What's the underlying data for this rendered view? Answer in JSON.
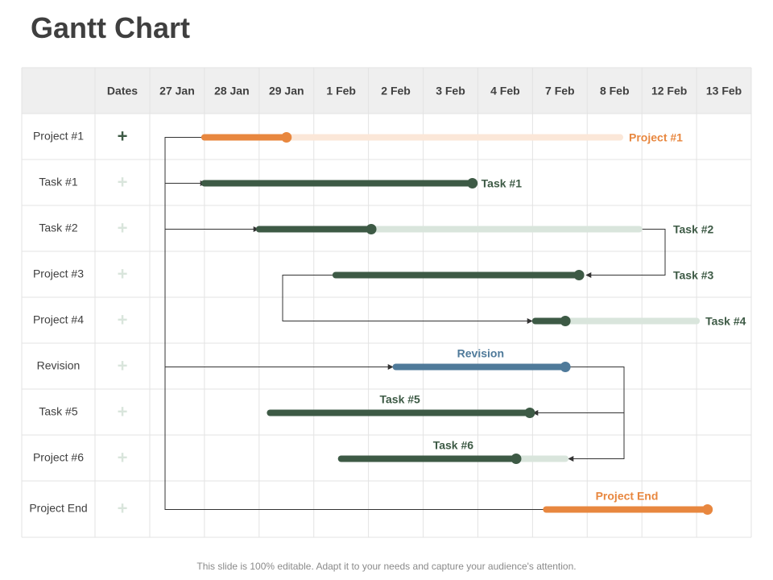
{
  "title": "Gantt Chart",
  "footer": "This slide is 100% editable. Adapt it to your needs and capture your audience's attention.",
  "chart_data": {
    "type": "gantt",
    "header_label": "Dates",
    "columns": [
      "27 Jan",
      "28 Jan",
      "29 Jan",
      "1 Feb",
      "2 Feb",
      "3 Feb",
      "4 Feb",
      "7 Feb",
      "8 Feb",
      "12 Feb",
      "13 Feb"
    ],
    "rows": [
      "Project #1",
      "Task #1",
      "Task #2",
      "Project #3",
      "Project #4",
      "Revision",
      "Task #5",
      "Project #6",
      "Project End"
    ],
    "plus_symbol": "+",
    "colors": {
      "orange": "#e8873f",
      "orange_light": "#fbe7d8",
      "green": "#3d5a45",
      "green_light": "#d9e5dc",
      "blue": "#4f7a9a",
      "header_bg": "#efefef",
      "grid": "#e3e3e3"
    },
    "bars": [
      {
        "row": 0,
        "start": 1.0,
        "progress_end": 2.5,
        "end": 8.6,
        "style": "orange",
        "label": "Project #1",
        "label_anchor": "right"
      },
      {
        "row": 1,
        "start": 1.0,
        "progress_end": 5.9,
        "end": 5.9,
        "style": "green",
        "label": "Task #1",
        "label_anchor": "right"
      },
      {
        "row": 2,
        "start": 2.0,
        "progress_end": 4.05,
        "end": 8.95,
        "style": "green",
        "label": "Task #2",
        "label_anchor": "far-right"
      },
      {
        "row": 3,
        "start": 3.4,
        "progress_end": 7.85,
        "end": 7.85,
        "style": "green",
        "label": "Task #3",
        "label_anchor": "far-right"
      },
      {
        "row": 4,
        "start": 7.05,
        "progress_end": 7.6,
        "end": 10.0,
        "style": "green",
        "label": "Task #4",
        "label_anchor": "right"
      },
      {
        "row": 5,
        "start": 4.5,
        "progress_end": 7.6,
        "end": 7.6,
        "style": "blue",
        "label": "Revision",
        "label_anchor": "above"
      },
      {
        "row": 6,
        "start": 2.2,
        "progress_end": 6.95,
        "end": 6.95,
        "style": "green",
        "label": "Task #5",
        "label_anchor": "above"
      },
      {
        "row": 7,
        "start": 3.5,
        "progress_end": 6.7,
        "end": 7.6,
        "style": "green",
        "label": "Task #6",
        "label_anchor": "above"
      },
      {
        "row": 8,
        "start": 7.25,
        "progress_end": 10.2,
        "end": 10.2,
        "style": "orange",
        "label": "Project End",
        "label_anchor": "above"
      }
    ]
  }
}
